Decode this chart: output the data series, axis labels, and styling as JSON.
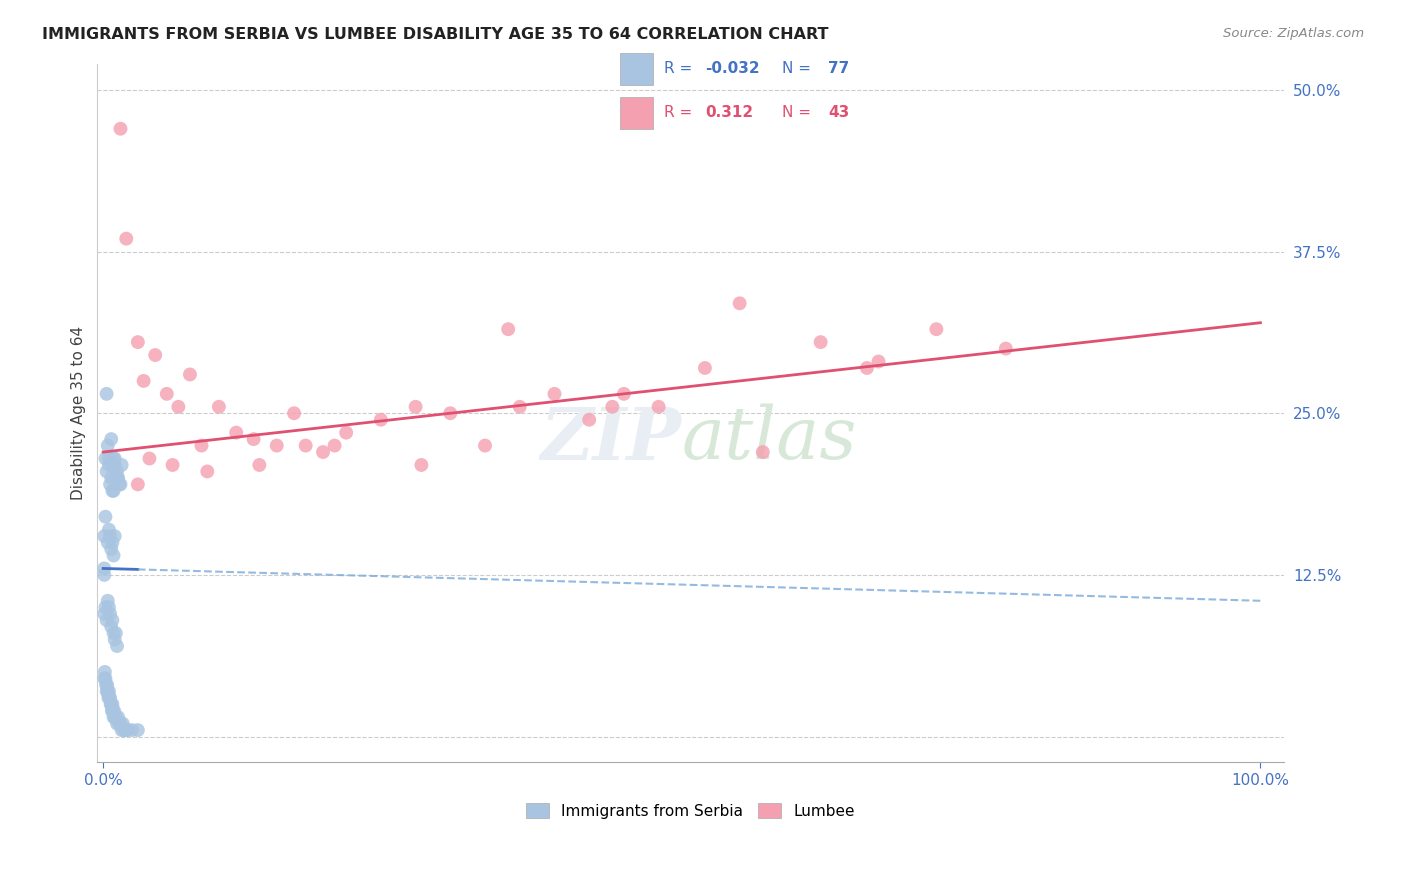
{
  "title": "IMMIGRANTS FROM SERBIA VS LUMBEE DISABILITY AGE 35 TO 64 CORRELATION CHART",
  "source": "Source: ZipAtlas.com",
  "ylabel": "Disability Age 35 to 64",
  "legend_label1": "Immigrants from Serbia",
  "legend_label2": "Lumbee",
  "serbia_color": "#a8c4e0",
  "lumbee_color": "#f4a0b0",
  "serbia_line_color": "#4472c4",
  "lumbee_line_color": "#e05070",
  "serbia_line_solid_color": "#4472c4",
  "serbia_line_dash_color": "#7aaad8",
  "ylim_min": 0,
  "ylim_max": 50,
  "xlim_min": 0,
  "xlim_max": 100,
  "yticks": [
    0,
    12.5,
    25.0,
    37.5,
    50.0
  ],
  "ytick_labels": [
    "",
    "12.5%",
    "25.0%",
    "37.5%",
    "50.0%"
  ],
  "serbia_x": [
    0.3,
    0.5,
    0.7,
    0.8,
    1.0,
    1.2,
    1.3,
    1.5,
    1.6,
    0.4,
    0.6,
    0.8,
    0.9,
    1.1,
    1.4,
    0.2,
    0.3,
    0.5,
    0.7,
    0.9,
    1.0,
    1.2,
    0.1,
    0.2,
    0.4,
    0.5,
    0.6,
    0.7,
    0.8,
    0.9,
    1.0,
    0.1,
    0.2,
    0.3,
    0.4,
    0.5,
    0.6,
    0.7,
    0.8,
    0.9,
    1.0,
    1.1,
    1.2,
    0.1,
    0.15,
    0.2,
    0.25,
    0.3,
    0.35,
    0.4,
    0.45,
    0.5,
    0.55,
    0.6,
    0.65,
    0.7,
    0.75,
    0.8,
    0.85,
    0.9,
    0.95,
    1.0,
    1.1,
    1.2,
    1.3,
    1.4,
    1.5,
    1.6,
    1.7,
    1.8,
    1.9,
    2.0,
    2.1,
    2.5,
    3.0,
    0.1,
    0.1
  ],
  "serbia_y": [
    26.5,
    21.5,
    23.0,
    21.0,
    21.5,
    20.5,
    20.0,
    19.5,
    21.0,
    22.5,
    19.5,
    19.0,
    21.5,
    20.0,
    19.5,
    21.5,
    20.5,
    21.0,
    20.0,
    19.0,
    21.0,
    20.0,
    15.5,
    17.0,
    15.0,
    16.0,
    15.5,
    14.5,
    15.0,
    14.0,
    15.5,
    9.5,
    10.0,
    9.0,
    10.5,
    10.0,
    9.5,
    8.5,
    9.0,
    8.0,
    7.5,
    8.0,
    7.0,
    4.5,
    5.0,
    4.5,
    4.0,
    3.5,
    4.0,
    3.5,
    3.0,
    3.5,
    3.0,
    3.0,
    2.5,
    2.5,
    2.0,
    2.5,
    2.0,
    1.5,
    2.0,
    1.5,
    1.5,
    1.0,
    1.5,
    1.0,
    1.0,
    0.5,
    1.0,
    0.5,
    0.5,
    0.5,
    0.5,
    0.5,
    0.5,
    13.0,
    12.5
  ],
  "lumbee_x": [
    1.5,
    3.0,
    3.5,
    4.5,
    5.5,
    6.5,
    7.5,
    8.5,
    10.0,
    11.5,
    13.0,
    15.0,
    16.5,
    17.5,
    19.0,
    21.0,
    24.0,
    27.0,
    30.0,
    33.0,
    36.0,
    39.0,
    42.0,
    45.0,
    48.0,
    52.0,
    57.0,
    62.0,
    67.0,
    72.0,
    78.0,
    3.0,
    4.0,
    6.0,
    9.0,
    13.5,
    20.0,
    27.5,
    35.0,
    44.0,
    55.0,
    2.0,
    66.0
  ],
  "lumbee_y": [
    47.0,
    30.5,
    27.5,
    29.5,
    26.5,
    25.5,
    28.0,
    22.5,
    25.5,
    23.5,
    23.0,
    22.5,
    25.0,
    22.5,
    22.0,
    23.5,
    24.5,
    25.5,
    25.0,
    22.5,
    25.5,
    26.5,
    24.5,
    26.5,
    25.5,
    28.5,
    22.0,
    30.5,
    29.0,
    31.5,
    30.0,
    19.5,
    21.5,
    21.0,
    20.5,
    21.0,
    22.5,
    21.0,
    31.5,
    25.5,
    33.5,
    38.5,
    28.5
  ],
  "serbia_r": "-0.032",
  "serbia_n": "77",
  "lumbee_r": "0.312",
  "lumbee_n": "43"
}
